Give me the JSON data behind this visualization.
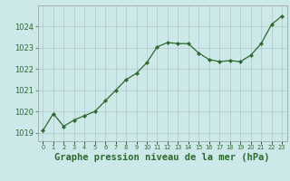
{
  "x": [
    0,
    1,
    2,
    3,
    4,
    5,
    6,
    7,
    8,
    9,
    10,
    11,
    12,
    13,
    14,
    15,
    16,
    17,
    18,
    19,
    20,
    21,
    22,
    23
  ],
  "y": [
    1019.1,
    1019.9,
    1019.3,
    1019.6,
    1019.8,
    1020.0,
    1020.5,
    1021.0,
    1021.5,
    1021.8,
    1022.3,
    1023.05,
    1023.25,
    1023.2,
    1023.2,
    1022.75,
    1022.45,
    1022.35,
    1022.4,
    1022.35,
    1022.65,
    1023.2,
    1024.1,
    1024.5
  ],
  "line_color": "#2d6a2d",
  "marker": "D",
  "marker_size": 2.2,
  "bg_color": "#cce8e8",
  "grid_color": "#b0c8c8",
  "xlabel": "Graphe pression niveau de la mer (hPa)",
  "xlabel_fontsize": 7.5,
  "ylabel_ticks": [
    1019,
    1020,
    1021,
    1022,
    1023,
    1024
  ],
  "xtick_labels": [
    "0",
    "1",
    "2",
    "3",
    "4",
    "5",
    "6",
    "7",
    "8",
    "9",
    "10",
    "11",
    "12",
    "13",
    "14",
    "15",
    "16",
    "17",
    "18",
    "19",
    "20",
    "21",
    "22",
    "23"
  ],
  "ylim": [
    1018.6,
    1025.0
  ],
  "xlim": [
    -0.5,
    23.5
  ]
}
